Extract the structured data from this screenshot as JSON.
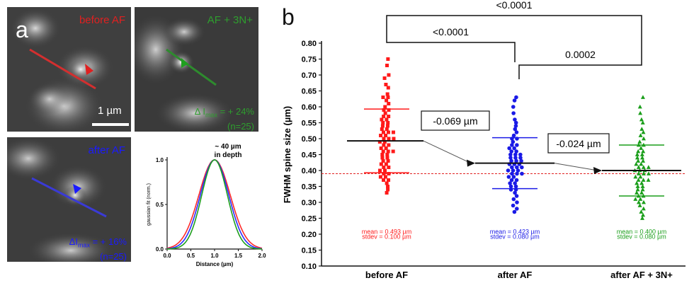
{
  "panel_a": {
    "letter": "a",
    "images": [
      {
        "label": "before AF",
        "label_color": "#e02020",
        "line_color": "#d32f2f",
        "arrow_color": "#e02020"
      },
      {
        "label": "AF + 3N+",
        "label_color": "#2e9e2e",
        "line_color": "#2e8b2e",
        "arrow_color": "#1fa01f",
        "stat_line1_prefix": "Δ I",
        "stat_line1_sub": "max",
        "stat_line1_suffix": " = + 24%",
        "stat_line2": "(n=25)"
      },
      {
        "label": "after AF",
        "label_color": "#1a1aff",
        "line_color": "#3a3ad6",
        "arrow_color": "#1a1aff",
        "stat_line1_prefix": "ΔI",
        "stat_line1_sub": "max",
        "stat_line1_suffix": " = + 16%",
        "stat_line2": "(n=25)"
      }
    ],
    "scalebar_label": "1 µm"
  },
  "inset_chart": {
    "title_line1": "~ 40 µm",
    "title_line2": "in depth",
    "ylabel": "gaussian fit (norm.)",
    "xlabel": "Distance (µm)",
    "xticks": [
      "0.0",
      "0.5",
      "1.0",
      "1.5",
      "2.0"
    ],
    "yticks": [
      "0.0",
      "0.5",
      "1.0"
    ],
    "xlim": [
      0,
      2
    ],
    "ylim": [
      0,
      1
    ],
    "curves": [
      {
        "color": "#ff2a2a",
        "center": 1.0,
        "sigma": 0.33
      },
      {
        "color": "#2b2bff",
        "center": 1.0,
        "sigma": 0.3
      },
      {
        "color": "#1e9e1e",
        "center": 1.0,
        "sigma": 0.27
      }
    ]
  },
  "chart_data": {
    "type": "scatter",
    "panel_letter": "b",
    "ylabel": "FWHM spine size (µm)",
    "ylim": [
      0.1,
      0.8
    ],
    "yticks": [
      "0.10",
      "0.15",
      "0.20",
      "0.25",
      "0.30",
      "0.35",
      "0.40",
      "0.45",
      "0.50",
      "0.55",
      "0.60",
      "0.65",
      "0.70",
      "0.75",
      "0.80"
    ],
    "categories": [
      "before AF",
      "after AF",
      "after AF + 3N+"
    ],
    "reference_line": {
      "y": 0.39,
      "color": "#e02020"
    },
    "series": [
      {
        "category": "before AF",
        "color": "#ff1a1a",
        "marker": "square",
        "mean": 0.493,
        "stdev": 0.1,
        "mean_text": "mean = 0.493 µm",
        "stdev_text": "stdev = 0.100 µm",
        "values": [
          0.75,
          0.73,
          0.7,
          0.69,
          0.67,
          0.66,
          0.64,
          0.63,
          0.63,
          0.62,
          0.61,
          0.6,
          0.59,
          0.59,
          0.58,
          0.57,
          0.57,
          0.56,
          0.56,
          0.55,
          0.55,
          0.54,
          0.54,
          0.53,
          0.53,
          0.52,
          0.52,
          0.52,
          0.51,
          0.51,
          0.5,
          0.5,
          0.5,
          0.49,
          0.49,
          0.48,
          0.48,
          0.47,
          0.47,
          0.46,
          0.46,
          0.46,
          0.45,
          0.45,
          0.44,
          0.44,
          0.43,
          0.43,
          0.42,
          0.42,
          0.41,
          0.41,
          0.4,
          0.4,
          0.39,
          0.39,
          0.38,
          0.38,
          0.37,
          0.37,
          0.36,
          0.35,
          0.34,
          0.33
        ]
      },
      {
        "category": "after AF",
        "color": "#1a1ae6",
        "marker": "circle",
        "mean": 0.423,
        "stdev": 0.08,
        "mean_text": "mean = 0.423 µm",
        "stdev_text": "stdev = 0.080 µm",
        "values": [
          0.63,
          0.62,
          0.6,
          0.58,
          0.56,
          0.55,
          0.54,
          0.53,
          0.52,
          0.51,
          0.5,
          0.5,
          0.49,
          0.48,
          0.48,
          0.47,
          0.47,
          0.46,
          0.46,
          0.45,
          0.45,
          0.45,
          0.44,
          0.44,
          0.44,
          0.43,
          0.43,
          0.43,
          0.42,
          0.42,
          0.42,
          0.41,
          0.41,
          0.41,
          0.4,
          0.4,
          0.4,
          0.39,
          0.39,
          0.39,
          0.38,
          0.38,
          0.37,
          0.37,
          0.36,
          0.36,
          0.35,
          0.35,
          0.34,
          0.34,
          0.33,
          0.32,
          0.31,
          0.3,
          0.29,
          0.28,
          0.27
        ]
      },
      {
        "category": "after AF + 3N+",
        "color": "#1a9e1a",
        "marker": "triangle",
        "mean": 0.4,
        "stdev": 0.08,
        "mean_text": "mean = 0.400 µm",
        "stdev_text": "stdev = 0.080 µm",
        "values": [
          0.63,
          0.6,
          0.58,
          0.56,
          0.55,
          0.53,
          0.52,
          0.51,
          0.5,
          0.49,
          0.48,
          0.48,
          0.47,
          0.46,
          0.46,
          0.45,
          0.45,
          0.44,
          0.44,
          0.43,
          0.43,
          0.42,
          0.42,
          0.41,
          0.41,
          0.41,
          0.4,
          0.4,
          0.4,
          0.39,
          0.39,
          0.39,
          0.38,
          0.38,
          0.37,
          0.37,
          0.37,
          0.36,
          0.36,
          0.35,
          0.35,
          0.34,
          0.34,
          0.33,
          0.33,
          0.32,
          0.32,
          0.31,
          0.31,
          0.3,
          0.3,
          0.29,
          0.28,
          0.27,
          0.26,
          0.25
        ]
      }
    ],
    "significance": [
      {
        "from": 0,
        "to": 2,
        "label": "<0.0001"
      },
      {
        "from": 0,
        "to": 1,
        "label": "<0.0001"
      },
      {
        "from": 1,
        "to": 2,
        "label": "0.0002"
      }
    ],
    "delta_annotations": [
      {
        "from": 0,
        "to": 1,
        "label": "-0.069 µm"
      },
      {
        "from": 1,
        "to": 2,
        "label": "-0.024 µm"
      }
    ]
  }
}
